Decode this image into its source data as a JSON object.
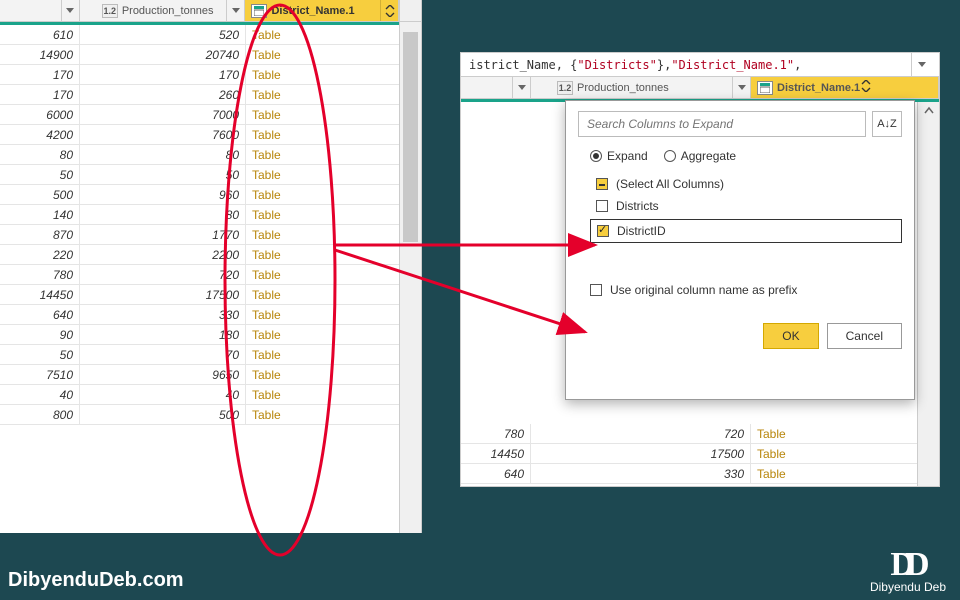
{
  "branding": {
    "left": "DibyenduDeb.com",
    "right_name": "Dibyendu Deb",
    "logo": "D"
  },
  "left_table": {
    "columns": {
      "b_type": "1.2",
      "b_label": "Production_tonnes",
      "c_label": "District_Name.1"
    },
    "link_word": "Table",
    "rows": [
      {
        "a": "610",
        "b": "520"
      },
      {
        "a": "14900",
        "b": "20740"
      },
      {
        "a": "170",
        "b": "170"
      },
      {
        "a": "170",
        "b": "260"
      },
      {
        "a": "6000",
        "b": "7000"
      },
      {
        "a": "4200",
        "b": "7600"
      },
      {
        "a": "80",
        "b": "80"
      },
      {
        "a": "50",
        "b": "50"
      },
      {
        "a": "500",
        "b": "960"
      },
      {
        "a": "140",
        "b": "80"
      },
      {
        "a": "870",
        "b": "1770"
      },
      {
        "a": "220",
        "b": "2200"
      },
      {
        "a": "780",
        "b": "720"
      },
      {
        "a": "14450",
        "b": "17500"
      },
      {
        "a": "640",
        "b": "330"
      },
      {
        "a": "90",
        "b": "180"
      },
      {
        "a": "50",
        "b": "70"
      },
      {
        "a": "7510",
        "b": "9650"
      },
      {
        "a": "40",
        "b": "40"
      },
      {
        "a": "800",
        "b": "500"
      }
    ]
  },
  "right_table": {
    "formula": {
      "pre": "istrict_Name, {",
      "arg1": "\"Districts\"",
      "mid": "}, ",
      "arg2": "\"District_Name.1\"",
      "post": ","
    },
    "columns": {
      "b_type": "1.2",
      "b_label": "Production_tonnes",
      "c_label": "District_Name.1"
    },
    "bottom_rows": [
      {
        "a": "780",
        "b": "720"
      },
      {
        "a": "14450",
        "b": "17500"
      },
      {
        "a": "640",
        "b": "330"
      }
    ],
    "link_word": "Table"
  },
  "popup": {
    "search_placeholder": "Search Columns to Expand",
    "sort_label": "A↓Z",
    "radio_expand": "Expand",
    "radio_aggregate": "Aggregate",
    "select_all": "(Select All Columns)",
    "opt_districts": "Districts",
    "opt_districtid": "DistrictID",
    "prefix": "Use original column name as prefix",
    "ok": "OK",
    "cancel": "Cancel"
  },
  "colors": {
    "background": "#1d4851",
    "header_highlight": "#f7ce3e",
    "teal_accent": "#1aa38a",
    "link_olive": "#b8860b",
    "annotation_red": "#e4002b"
  }
}
